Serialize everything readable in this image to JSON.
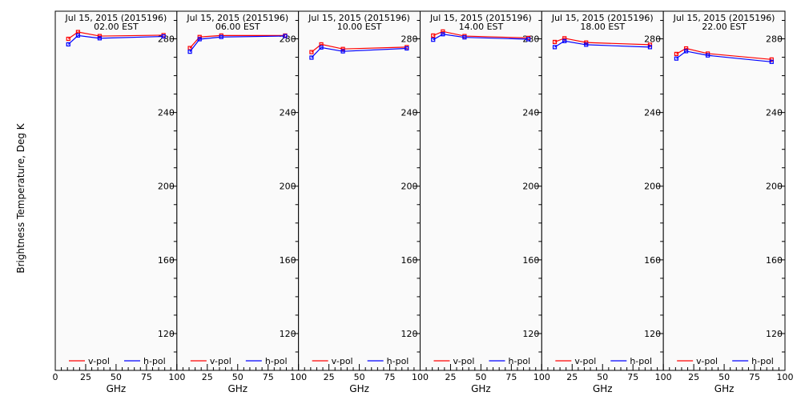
{
  "figure": {
    "ylabel": "Brightness Temperature, Deg K",
    "xlabel": "GHz",
    "legend": {
      "vpol": "v-pol",
      "hpol": "h-pol"
    },
    "colors": {
      "vpol": "#ff0000",
      "hpol": "#0000ff",
      "background": "#fafafa",
      "frame": "#000000"
    }
  },
  "chart_data": [
    {
      "type": "line",
      "title": [
        "Jul 15, 2015 (2015196)",
        "02.00 EST"
      ],
      "xlabel": "GHz",
      "ylabel": "Brightness Temperature, Deg K",
      "xlim": [
        0,
        100
      ],
      "ylim": [
        100,
        295
      ],
      "xticks": [
        "0",
        "25",
        "50",
        "75",
        "100"
      ],
      "yticks": [
        120,
        160,
        200,
        240,
        280
      ],
      "x": [
        10.7,
        18.7,
        36.5,
        89.0
      ],
      "series": [
        {
          "name": "v-pol",
          "values": [
            280.0,
            283.7,
            281.5,
            282.0
          ]
        },
        {
          "name": "h-pol",
          "values": [
            277.0,
            281.8,
            280.3,
            281.3
          ]
        }
      ],
      "legend": "bottom",
      "grid": false
    },
    {
      "type": "line",
      "title": [
        "Jul 15, 2015 (2015196)",
        "06.00 EST"
      ],
      "xlabel": "GHz",
      "ylabel": "Brightness Temperature, Deg K",
      "xlim": [
        0,
        100
      ],
      "ylim": [
        100,
        295
      ],
      "xticks": [
        "0",
        "25",
        "50",
        "75",
        "100"
      ],
      "yticks": [
        120,
        160,
        200,
        240,
        280
      ],
      "x": [
        10.7,
        18.7,
        36.5,
        89.0
      ],
      "series": [
        {
          "name": "v-pol",
          "values": [
            275.0,
            281.0,
            281.8,
            281.8
          ]
        },
        {
          "name": "h-pol",
          "values": [
            273.0,
            279.8,
            281.0,
            281.5
          ]
        }
      ],
      "legend": "bottom",
      "grid": false
    },
    {
      "type": "line",
      "title": [
        "Jul 15, 2015 (2015196)",
        "10.00 EST"
      ],
      "xlabel": "GHz",
      "ylabel": "Brightness Temperature, Deg K",
      "xlim": [
        0,
        100
      ],
      "ylim": [
        100,
        295
      ],
      "xticks": [
        "0",
        "25",
        "50",
        "75",
        "100"
      ],
      "yticks": [
        120,
        160,
        200,
        240,
        280
      ],
      "x": [
        10.7,
        18.7,
        36.5,
        89.0
      ],
      "series": [
        {
          "name": "v-pol",
          "values": [
            272.8,
            277.0,
            274.5,
            275.5
          ]
        },
        {
          "name": "h-pol",
          "values": [
            269.8,
            275.3,
            273.2,
            274.8
          ]
        }
      ],
      "legend": "bottom",
      "grid": false
    },
    {
      "type": "line",
      "title": [
        "Jul 15, 2015 (2015196)",
        "14.00 EST"
      ],
      "xlabel": "GHz",
      "ylabel": "Brightness Temperature, Deg K",
      "xlim": [
        0,
        100
      ],
      "ylim": [
        100,
        295
      ],
      "xticks": [
        "0",
        "25",
        "50",
        "75",
        "100"
      ],
      "yticks": [
        120,
        160,
        200,
        240,
        280
      ],
      "x": [
        10.7,
        18.7,
        36.5,
        89.0
      ],
      "series": [
        {
          "name": "v-pol",
          "values": [
            281.8,
            284.0,
            281.5,
            280.5
          ]
        },
        {
          "name": "h-pol",
          "values": [
            279.5,
            282.5,
            280.8,
            279.8
          ]
        }
      ],
      "legend": "bottom",
      "grid": false
    },
    {
      "type": "line",
      "title": [
        "Jul 15, 2015 (2015196)",
        "18.00 EST"
      ],
      "xlabel": "GHz",
      "ylabel": "Brightness Temperature, Deg K",
      "xlim": [
        0,
        100
      ],
      "ylim": [
        100,
        295
      ],
      "xticks": [
        "0",
        "25",
        "50",
        "75",
        "100"
      ],
      "yticks": [
        120,
        160,
        200,
        240,
        280
      ],
      "x": [
        10.7,
        18.7,
        36.5,
        89.0
      ],
      "series": [
        {
          "name": "v-pol",
          "values": [
            278.3,
            280.3,
            278.0,
            276.8
          ]
        },
        {
          "name": "h-pol",
          "values": [
            275.5,
            278.8,
            276.8,
            275.5
          ]
        }
      ],
      "legend": "bottom",
      "grid": false
    },
    {
      "type": "line",
      "title": [
        "Jul 15, 2015 (2015196)",
        "22.00 EST"
      ],
      "xlabel": "GHz",
      "ylabel": "Brightness Temperature, Deg K",
      "xlim": [
        0,
        100
      ],
      "ylim": [
        100,
        295
      ],
      "xticks": [
        "0",
        "25",
        "50",
        "75",
        "100"
      ],
      "yticks": [
        120,
        160,
        200,
        240,
        280
      ],
      "x": [
        10.7,
        18.7,
        36.5,
        89.0
      ],
      "series": [
        {
          "name": "v-pol",
          "values": [
            271.8,
            274.8,
            272.0,
            268.8
          ]
        },
        {
          "name": "h-pol",
          "values": [
            269.3,
            273.3,
            271.0,
            267.5
          ]
        }
      ],
      "legend": "bottom",
      "grid": false
    }
  ]
}
